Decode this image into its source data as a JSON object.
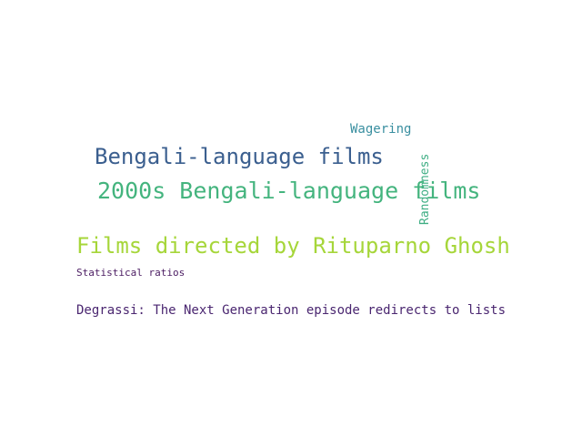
{
  "word_cloud": {
    "words": [
      {
        "key": "wagering",
        "text": "Wagering",
        "color": "#3a8fa0"
      },
      {
        "key": "bengali-language-films",
        "text": "Bengali-language films",
        "color": "#3b5f8f"
      },
      {
        "key": "randomness",
        "text": "Randomness",
        "color": "#3fae84"
      },
      {
        "key": "2000s-bengali-language-films",
        "text": "2000s Bengali-language films",
        "color": "#44b47e"
      },
      {
        "key": "films-directed-by-rituparno-ghosh",
        "text": "Films directed by Rituparno Ghosh",
        "color": "#a6d63a"
      },
      {
        "key": "statistical-ratios",
        "text": "Statistical ratios",
        "color": "#4b1c62"
      },
      {
        "key": "degrassi-redirects",
        "text": "Degrassi: The Next Generation episode redirects to lists",
        "color": "#4a2670"
      }
    ]
  }
}
